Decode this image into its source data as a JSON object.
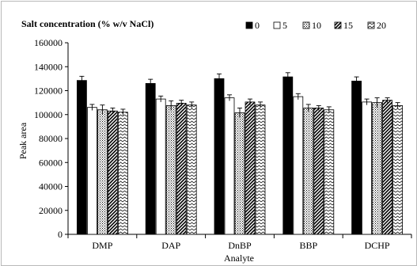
{
  "chart_data": {
    "type": "bar",
    "legend_title": "Salt concentration (% w/v NaCl)",
    "legend_placement": "top",
    "xlabel": "Analyte",
    "ylabel": "Peak area",
    "ylim": [
      0,
      160000
    ],
    "yticks": [
      "0",
      "20000",
      "40000",
      "60000",
      "80000",
      "100000",
      "120000",
      "140000",
      "160000"
    ],
    "grid": false,
    "categories": [
      "DMP",
      "DAP",
      "DnBP",
      "BBP",
      "DCHP"
    ],
    "series": [
      {
        "name": "0",
        "fill": "black",
        "values": [
          128500,
          126000,
          130000,
          131500,
          128000
        ],
        "errors": [
          3500,
          3500,
          4000,
          3500,
          3500
        ]
      },
      {
        "name": "5",
        "fill": "white",
        "values": [
          106000,
          113000,
          114000,
          115000,
          110500
        ],
        "errors": [
          2500,
          2500,
          2500,
          2500,
          2500
        ]
      },
      {
        "name": "10",
        "fill": "dots",
        "values": [
          104000,
          107500,
          101500,
          105500,
          110000
        ],
        "errors": [
          4000,
          4000,
          4000,
          3000,
          4000
        ]
      },
      {
        "name": "15",
        "fill": "diag",
        "values": [
          103000,
          109500,
          110500,
          105500,
          112000
        ],
        "errors": [
          2500,
          2500,
          2500,
          2000,
          2000
        ]
      },
      {
        "name": "20",
        "fill": "zigzag",
        "values": [
          102000,
          108000,
          108000,
          104000,
          107500
        ],
        "errors": [
          2500,
          2500,
          2500,
          2500,
          2500
        ]
      }
    ],
    "colors": {
      "bar_black": "#000000",
      "bar_outline": "#000000",
      "frame": "#b9b9b9"
    }
  }
}
